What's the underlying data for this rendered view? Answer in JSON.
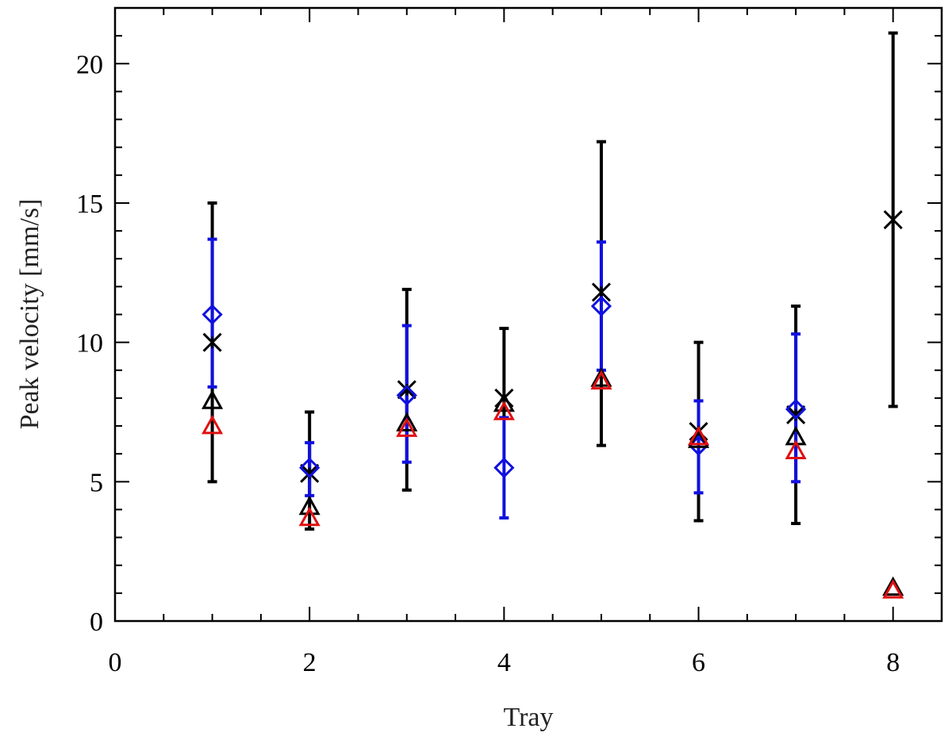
{
  "chart_data": {
    "type": "scatter",
    "title": "",
    "xlabel": "Tray",
    "ylabel": "Peak velocity [mm/s]",
    "xlim": [
      0,
      8.5
    ],
    "ylim": [
      0,
      22
    ],
    "x_major_ticks": [
      0,
      2,
      4,
      6,
      8
    ],
    "x_tick_labels": [
      "0",
      "2",
      "4",
      "6",
      "8"
    ],
    "x_minor_step": 0.5,
    "y_major_ticks": [
      0,
      5,
      10,
      15,
      20
    ],
    "y_tick_labels": [
      "0",
      "5",
      "10",
      "15",
      "20"
    ],
    "y_minor_step": 1,
    "grid": false,
    "series": [
      {
        "marker": "asterisk",
        "color": "#000000",
        "errorbars": true,
        "points": [
          {
            "x": 1,
            "y": 10.0,
            "low": 5.0,
            "high": 15.0
          },
          {
            "x": 2,
            "y": 5.3,
            "low": 3.3,
            "high": 7.5
          },
          {
            "x": 3,
            "y": 8.3,
            "low": 4.7,
            "high": 11.9
          },
          {
            "x": 4,
            "y": 8.0,
            "low": 7.3,
            "high": 10.5
          },
          {
            "x": 5,
            "y": 11.8,
            "low": 6.3,
            "high": 17.2
          },
          {
            "x": 6,
            "y": 6.8,
            "low": 3.6,
            "high": 10.0
          },
          {
            "x": 7,
            "y": 7.4,
            "low": 3.5,
            "high": 11.3
          },
          {
            "x": 8,
            "y": 14.4,
            "low": 7.7,
            "high": 21.1
          }
        ]
      },
      {
        "marker": "diamond",
        "color": "#1010e0",
        "errorbars": true,
        "points": [
          {
            "x": 1,
            "y": 11.0,
            "low": 8.4,
            "high": 13.7
          },
          {
            "x": 2,
            "y": 5.5,
            "low": 4.5,
            "high": 6.4
          },
          {
            "x": 3,
            "y": 8.1,
            "low": 5.7,
            "high": 10.6
          },
          {
            "x": 4,
            "y": 5.5,
            "low": 3.7,
            "high": 7.3
          },
          {
            "x": 5,
            "y": 11.3,
            "low": 9.0,
            "high": 13.6
          },
          {
            "x": 6,
            "y": 6.3,
            "low": 4.6,
            "high": 7.9
          },
          {
            "x": 7,
            "y": 7.6,
            "low": 5.0,
            "high": 10.3
          }
        ]
      },
      {
        "marker": "triangle",
        "color": "#000000",
        "errorbars": false,
        "points": [
          {
            "x": 1,
            "y": 7.9
          },
          {
            "x": 2,
            "y": 4.1
          },
          {
            "x": 3,
            "y": 7.1
          },
          {
            "x": 4,
            "y": 7.8
          },
          {
            "x": 5,
            "y": 8.7
          },
          {
            "x": 6,
            "y": 6.5
          },
          {
            "x": 7,
            "y": 6.6
          },
          {
            "x": 8,
            "y": 1.2
          }
        ]
      },
      {
        "marker": "triangle",
        "color": "#e01010",
        "errorbars": false,
        "points": [
          {
            "x": 1,
            "y": 7.0
          },
          {
            "x": 2,
            "y": 3.7
          },
          {
            "x": 3,
            "y": 6.9
          },
          {
            "x": 4,
            "y": 7.5
          },
          {
            "x": 5,
            "y": 8.6
          },
          {
            "x": 6,
            "y": 6.6
          },
          {
            "x": 7,
            "y": 6.1
          },
          {
            "x": 8,
            "y": 1.1
          }
        ]
      }
    ]
  }
}
